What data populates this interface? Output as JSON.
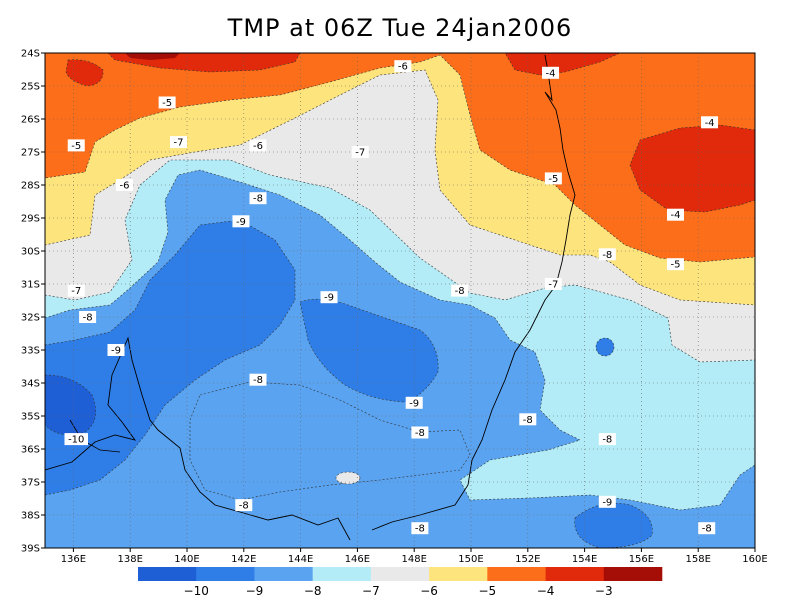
{
  "title": "TMP at 06Z Tue 24jan2006",
  "chart_data": {
    "type": "heatmap",
    "title": "TMP at 06Z Tue 24jan2006",
    "lon_range": [
      135,
      160
    ],
    "lat_range": [
      -39,
      -24
    ],
    "grid": true,
    "x_tick_labels": [
      "136E",
      "138E",
      "140E",
      "142E",
      "144E",
      "146E",
      "148E",
      "150E",
      "152E",
      "154E",
      "156E",
      "158E",
      "160E"
    ],
    "x_tick_values": [
      136,
      138,
      140,
      142,
      144,
      146,
      148,
      150,
      152,
      154,
      156,
      158,
      160
    ],
    "y_tick_labels": [
      "24S",
      "25S",
      "26S",
      "27S",
      "28S",
      "29S",
      "30S",
      "31S",
      "32S",
      "33S",
      "34S",
      "35S",
      "36S",
      "37S",
      "38S",
      "39S"
    ],
    "y_tick_values": [
      -24,
      -25,
      -26,
      -27,
      -28,
      -29,
      -30,
      -31,
      -32,
      -33,
      -34,
      -35,
      -36,
      -37,
      -38,
      -39
    ],
    "levels": [
      -10,
      -9,
      -8,
      -7,
      -6,
      -5,
      -4,
      -3
    ],
    "colorbar_labels": [
      "-10",
      "-9",
      "-8",
      "-7",
      "-6",
      "-5",
      "-4",
      "-3"
    ],
    "colorbar_colors": [
      "#1f5fd6",
      "#2f7ee8",
      "#5aa3f0",
      "#b3ecf7",
      "#e9e9e9",
      "#fde47c",
      "#fd6e1a",
      "#e02a0b",
      "#a50e07"
    ],
    "contour_labels": [
      {
        "text": "-6",
        "lon": 147.6,
        "lat": -24.4
      },
      {
        "text": "-4",
        "lon": 152.8,
        "lat": -24.6
      },
      {
        "text": "-5",
        "lon": 139.3,
        "lat": -25.5
      },
      {
        "text": "-4",
        "lon": 158.4,
        "lat": -26.1
      },
      {
        "text": "-5",
        "lon": 136.1,
        "lat": -26.8
      },
      {
        "text": "-7",
        "lon": 139.7,
        "lat": -26.7
      },
      {
        "text": "-6",
        "lon": 142.5,
        "lat": -26.8
      },
      {
        "text": "-7",
        "lon": 146.1,
        "lat": -27.0
      },
      {
        "text": "-6",
        "lon": 137.8,
        "lat": -28.0
      },
      {
        "text": "-5",
        "lon": 152.9,
        "lat": -27.8
      },
      {
        "text": "-8",
        "lon": 142.5,
        "lat": -28.4
      },
      {
        "text": "-4",
        "lon": 157.2,
        "lat": -28.9
      },
      {
        "text": "-9",
        "lon": 141.9,
        "lat": -29.1
      },
      {
        "text": "-8",
        "lon": 154.8,
        "lat": -30.1
      },
      {
        "text": "-5",
        "lon": 157.2,
        "lat": -30.4
      },
      {
        "text": "-7",
        "lon": 136.1,
        "lat": -31.2
      },
      {
        "text": "-7",
        "lon": 152.9,
        "lat": -31.0
      },
      {
        "text": "-8",
        "lon": 149.6,
        "lat": -31.2
      },
      {
        "text": "-9",
        "lon": 145.0,
        "lat": -31.4
      },
      {
        "text": "-8",
        "lon": 136.5,
        "lat": -32.0
      },
      {
        "text": "-9",
        "lon": 137.5,
        "lat": -33.0
      },
      {
        "text": "-8",
        "lon": 142.5,
        "lat": -33.9
      },
      {
        "text": "-9",
        "lon": 148.0,
        "lat": -34.6
      },
      {
        "text": "-8",
        "lon": 152.0,
        "lat": -35.1
      },
      {
        "text": "-8",
        "lon": 148.2,
        "lat": -35.5
      },
      {
        "text": "-10",
        "lon": 136.1,
        "lat": -35.7
      },
      {
        "text": "-8",
        "lon": 154.8,
        "lat": -35.7
      },
      {
        "text": "-8",
        "lon": 142.0,
        "lat": -37.7
      },
      {
        "text": "-9",
        "lon": 154.8,
        "lat": -37.6
      },
      {
        "text": "-8",
        "lon": 148.2,
        "lat": -38.4
      },
      {
        "text": "-8",
        "lon": 158.3,
        "lat": -38.4
      }
    ]
  }
}
